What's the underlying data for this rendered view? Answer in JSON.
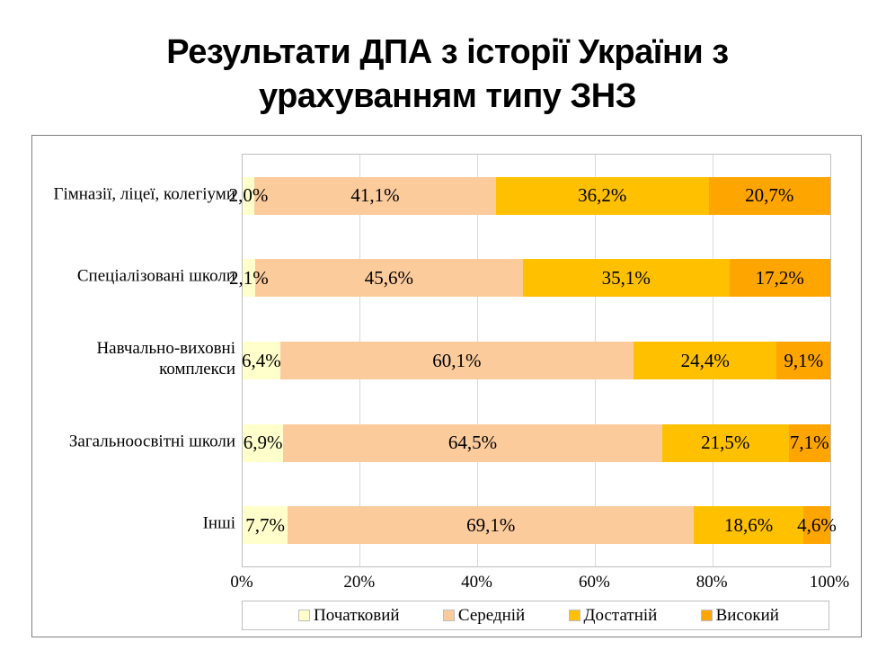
{
  "title": "Результати ДПА з історії України з урахуванням типу ЗНЗ",
  "chart_data": {
    "type": "bar",
    "orientation": "horizontal-stacked",
    "title": "Результати ДПА з історії України з урахуванням типу ЗНЗ",
    "categories": [
      "Гімназії, ліцеї, колегіуми",
      "Спеціалізовані школи",
      "Навчально-виховні комплекси",
      "Загальноосвітні школи",
      "Інші"
    ],
    "series": [
      {
        "name": "Початковий",
        "color": "#FFFFCC",
        "values": [
          2.0,
          2.1,
          6.4,
          6.9,
          7.7
        ],
        "labels": [
          "2,0%",
          "2,1%",
          "6,4%",
          "6,9%",
          "7,7%"
        ]
      },
      {
        "name": "Середній",
        "color": "#FBCB9C",
        "values": [
          41.1,
          45.6,
          60.1,
          64.5,
          69.1
        ],
        "labels": [
          "41,1%",
          "45,6%",
          "60,1%",
          "64,5%",
          "69,1%"
        ]
      },
      {
        "name": "Достатній",
        "color": "#FFC000",
        "values": [
          36.2,
          35.1,
          24.4,
          21.5,
          18.6
        ],
        "labels": [
          "36,2%",
          "35,1%",
          "24,4%",
          "21,5%",
          "18,6%"
        ]
      },
      {
        "name": "Високий",
        "color": "#FFA500",
        "values": [
          20.7,
          17.2,
          9.1,
          7.1,
          4.6
        ],
        "labels": [
          "20,7%",
          "17,2%",
          "9,1%",
          "7,1%",
          "4,6%"
        ]
      }
    ],
    "x_ticks": [
      "0%",
      "20%",
      "40%",
      "60%",
      "80%",
      "100%"
    ],
    "x_tick_values": [
      0,
      20,
      40,
      60,
      80,
      100
    ],
    "gridline_values": [
      20,
      40,
      60,
      80
    ],
    "xlim": [
      0,
      100
    ],
    "grid": "vertical",
    "legend_position": "bottom",
    "colors": {
      "grid": "#D9D9D9",
      "plot_border": "#BFBFBF",
      "chart_border": "#7F7F7F",
      "text": "#000000",
      "background": "#FFFFFF"
    }
  }
}
